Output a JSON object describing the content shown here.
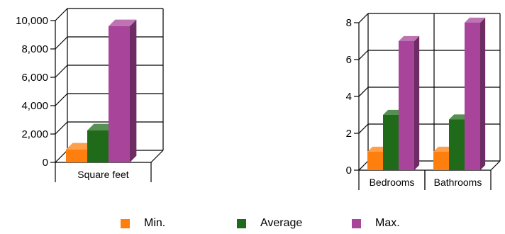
{
  "colors": {
    "min": "#ff7f0e",
    "average": "#1f6b1a",
    "max": "#a8449a",
    "grid": "#000000"
  },
  "chart_data": [
    {
      "type": "bar",
      "categories": [
        "Square feet"
      ],
      "series": [
        {
          "name": "Min.",
          "values": [
            900
          ]
        },
        {
          "name": "Average",
          "values": [
            2250
          ]
        },
        {
          "name": "Max.",
          "values": [
            9600
          ]
        }
      ],
      "ylim": [
        0,
        10000
      ],
      "yticks": [
        "0",
        "2,000",
        "4,000",
        "6,000",
        "8,000",
        "10,000"
      ],
      "grid": true,
      "legend": "bottom"
    },
    {
      "type": "bar",
      "categories": [
        "Bedrooms",
        "Bathrooms"
      ],
      "series": [
        {
          "name": "Min.",
          "values": [
            1,
            1
          ]
        },
        {
          "name": "Average",
          "values": [
            3,
            2.75
          ]
        },
        {
          "name": "Max.",
          "values": [
            7,
            8
          ]
        }
      ],
      "ylim": [
        0,
        8
      ],
      "yticks": [
        "0",
        "2",
        "4",
        "6",
        "8"
      ],
      "grid": true,
      "legend": "bottom"
    }
  ],
  "legend": [
    {
      "label": "Min.",
      "color": "#ff7f0e"
    },
    {
      "label": "Average",
      "color": "#1f6b1a"
    },
    {
      "label": "Max.",
      "color": "#a8449a"
    }
  ]
}
